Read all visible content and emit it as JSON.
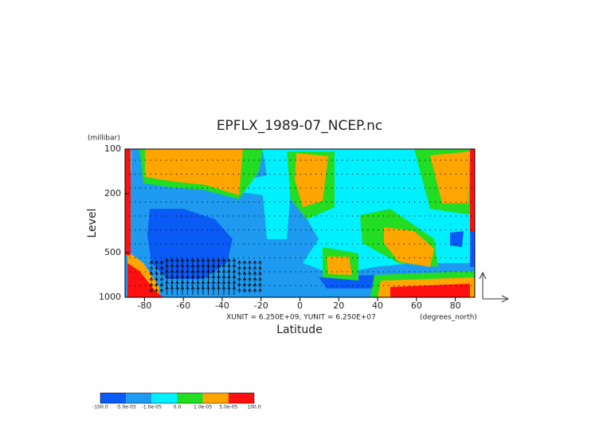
{
  "chart_data": {
    "type": "contour",
    "title": "EPFLX_1989-07_NCEP.nc",
    "xlabel": "Latitude",
    "ylabel": "Level",
    "y_unit": "(millibar)",
    "x_unit": "(degrees_north)",
    "annotation": "XUNIT = 6.250E+09, YUNIT = 6.250E+07",
    "xlim": [
      -90,
      90
    ],
    "ylim": [
      1000,
      100
    ],
    "log_y": true,
    "xticks": [
      -80,
      -60,
      -40,
      -20,
      0,
      20,
      40,
      60,
      80
    ],
    "yticks": [
      100,
      200,
      500,
      1000
    ],
    "levels": [
      {
        "value": -100,
        "label": "-100.0"
      },
      {
        "value": -5e-05,
        "label": "-5.0e-05"
      },
      {
        "value": -1e-05,
        "label": "-1.0e-05"
      },
      {
        "value": 0,
        "label": "0.0"
      },
      {
        "value": 1e-05,
        "label": "1.0e-05"
      },
      {
        "value": 5e-05,
        "label": "5.0e-05"
      },
      {
        "value": 100,
        "label": "100.0"
      }
    ],
    "level_colors": [
      "#0a5af5",
      "#1e9bf0",
      "#00f0ff",
      "#22dd22",
      "#ffa500",
      "#ff1010"
    ]
  }
}
